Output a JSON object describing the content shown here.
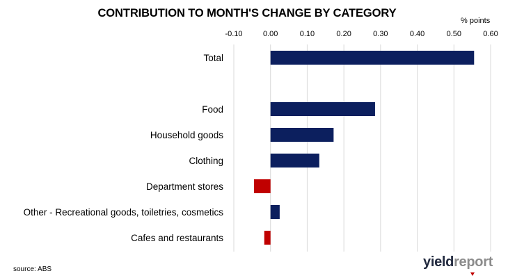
{
  "chart_data": {
    "type": "bar",
    "orientation": "horizontal",
    "title": "CONTRIBUTION TO MONTH'S CHANGE BY CATEGORY",
    "units_label": "% points",
    "xlim": [
      -0.1,
      0.6
    ],
    "x_ticks": [
      -0.1,
      0.0,
      0.1,
      0.2,
      0.3,
      0.4,
      0.5,
      0.6
    ],
    "x_tick_labels": [
      "-0.10",
      "0.00",
      "0.10",
      "0.20",
      "0.30",
      "0.40",
      "0.50",
      "0.60"
    ],
    "axis_position": "top",
    "grid": true,
    "categories": [
      "Total",
      "",
      "Food",
      "Household goods",
      "Clothing",
      "Department stores",
      "Other - Recreational goods, toiletries, cosmetics",
      "Cafes and restaurants"
    ],
    "values": [
      0.555,
      null,
      0.285,
      0.172,
      0.133,
      -0.045,
      0.025,
      -0.017
    ],
    "colors": {
      "positive": "#0c1f5e",
      "negative": "#c00000",
      "grid": "#d9d9d9"
    }
  },
  "footer": {
    "source": "source: ABS",
    "logo_part1": "yield",
    "logo_part2": "report"
  }
}
